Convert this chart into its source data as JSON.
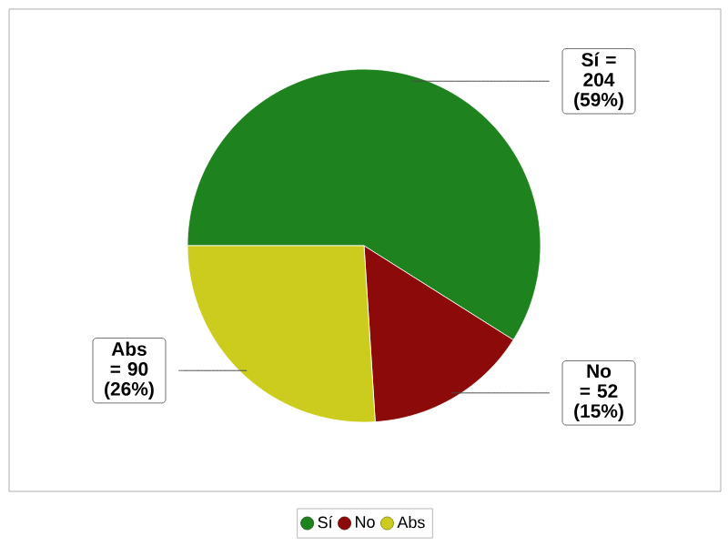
{
  "chart_data": {
    "type": "pie",
    "categories": [
      "Sí",
      "No",
      "Abs"
    ],
    "values": [
      204,
      52,
      90
    ],
    "colors": [
      "#1e821e",
      "#8c0a0a",
      "#cccc1e"
    ],
    "value_labels": [
      "Sí = 204 (59%)",
      "No = 52 (15%)",
      "Abs = 90 (26%)"
    ],
    "legend": "bottom"
  }
}
